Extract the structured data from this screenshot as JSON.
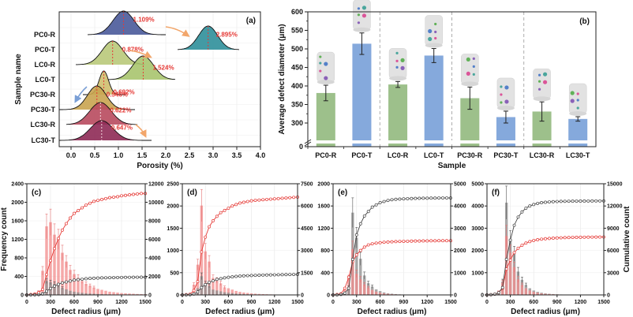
{
  "chart_data": [
    {
      "id": "a",
      "type": "ridgeline",
      "panel_label": "(a)",
      "xlabel": "Porosity (%)",
      "ylabel": "Sample name",
      "xlim": [
        -0.25,
        4.0
      ],
      "xticks": [
        "0.0",
        "0.5",
        "1.0",
        "1.5",
        "2.0",
        "2.5",
        "3.0",
        "3.5",
        "4.0"
      ],
      "xtick_values": [
        0,
        0.5,
        1,
        1.5,
        2,
        2.5,
        3,
        3.5,
        4
      ],
      "grid": true,
      "categories": [
        "PC0-R",
        "PC0-T",
        "LC0-R",
        "LC0-T",
        "PC30-R",
        "PC30-T",
        "LC30-R",
        "LC30-T"
      ],
      "series": [
        {
          "name": "PC0-R",
          "mean": 1.109,
          "label": "1.109%",
          "sd": 0.22,
          "range": [
            0.35,
            2.0
          ],
          "color": "#4a5a9a"
        },
        {
          "name": "PC0-T",
          "mean": 2.895,
          "label": "2.895%",
          "sd": 0.2,
          "range": [
            2.25,
            3.55
          ],
          "color": "#2f8f9a"
        },
        {
          "name": "LC0-R",
          "mean": 0.878,
          "label": "0.878%",
          "sd": 0.22,
          "range": [
            0.1,
            1.55
          ],
          "color": "#b9c97a"
        },
        {
          "name": "LC0-T",
          "mean": 1.524,
          "label": "1.524%",
          "sd": 0.22,
          "range": [
            0.75,
            2.2
          ],
          "color": "#a9c46e"
        },
        {
          "name": "PC30-R",
          "mean": 0.692,
          "label": "0.692%",
          "sd": 0.1,
          "range": [
            0.25,
            1.15
          ],
          "color": "#cfbf6e"
        },
        {
          "name": "PC30-T",
          "mean": 0.546,
          "label": "0.546%",
          "sd": 0.2,
          "range": [
            -0.25,
            1.35
          ],
          "color": "#c9a450"
        },
        {
          "name": "LC30-R",
          "mean": 0.622,
          "label": "0.622%",
          "sd": 0.23,
          "range": [
            -0.1,
            1.4
          ],
          "color": "#b84a5e"
        },
        {
          "name": "LC30-T",
          "mean": 0.647,
          "label": "0.647%",
          "sd": 0.24,
          "range": [
            -0.25,
            1.7
          ],
          "color": "#8e2a55"
        }
      ]
    },
    {
      "id": "b",
      "type": "bar",
      "panel_label": "(b)",
      "xlabel": "Sample",
      "ylabel": "Average defect diameter (μm)",
      "ylim_broken": [
        0,
        250,
        600
      ],
      "yticks": [
        "0",
        "300",
        "350",
        "400",
        "450",
        "500",
        "550",
        "600"
      ],
      "ytick_values": [
        0,
        300,
        350,
        400,
        450,
        500,
        550,
        600
      ],
      "categories": [
        "PC0-R",
        "PC0-T",
        "LC0-R",
        "LC0-T",
        "PC30-R",
        "PC30-T",
        "LC30-R",
        "LC30-T"
      ],
      "values": [
        381,
        514,
        404,
        482,
        367,
        316,
        331,
        311
      ],
      "errors": [
        21,
        29,
        8,
        19,
        30,
        16,
        26,
        6
      ],
      "colors": [
        "#9dc08b",
        "#85a9dc",
        "#9dc08b",
        "#85a9dc",
        "#9dc08b",
        "#85a9dc",
        "#9dc08b",
        "#85a9dc"
      ],
      "group_dividers_after": [
        1,
        3,
        5
      ],
      "insets": "3D defect reconstructions above each bar"
    },
    {
      "id": "c",
      "type": "bar+line",
      "panel_label": "(c)",
      "xlabel": "Defect radius (μm)",
      "ylabel_left": "Frequency count",
      "xlim": [
        0,
        1500
      ],
      "xticks": [
        "0",
        "300",
        "600",
        "900",
        "1200",
        "1500"
      ],
      "ylim_left": [
        0,
        2400
      ],
      "yticks_left": [
        "0",
        "400",
        "800",
        "1200",
        "1600",
        "2000",
        "2400"
      ],
      "ylim_right": [
        0,
        12000
      ],
      "yticks_right": [
        "0",
        "2000",
        "4000",
        "6000",
        "8000",
        "10000",
        "12000"
      ],
      "x": [
        0,
        50,
        100,
        150,
        200,
        250,
        300,
        350,
        400,
        450,
        500,
        550,
        600,
        650,
        700,
        750,
        800,
        850,
        900,
        950,
        1000,
        1050,
        1100,
        1150,
        1200,
        1250,
        1300,
        1350,
        1400,
        1450,
        1500
      ],
      "series": [
        {
          "name": "freq-red",
          "axis": "left",
          "kind": "bar",
          "color": "#f28b8b",
          "values": [
            10,
            15,
            40,
            100,
            520,
            1480,
            1570,
            1300,
            1200,
            910,
            720,
            540,
            450,
            370,
            300,
            240,
            200,
            160,
            130,
            110,
            90,
            70,
            60,
            50,
            40,
            35,
            30,
            25,
            20,
            18,
            15
          ]
        },
        {
          "name": "freq-gray",
          "axis": "left",
          "kind": "bar",
          "color": "#8c8c8c",
          "values": [
            0,
            0,
            5,
            10,
            60,
            300,
            270,
            240,
            200,
            150,
            120,
            90,
            70,
            55,
            45,
            35,
            30,
            25,
            20,
            15,
            12,
            10,
            8,
            6,
            5,
            4,
            3,
            3,
            2,
            2,
            2
          ]
        },
        {
          "name": "cum-red",
          "axis": "right",
          "kind": "line",
          "color": "#e53935",
          "values": [
            0,
            50,
            100,
            250,
            600,
            2200,
            3700,
            5000,
            6100,
            7000,
            7700,
            8300,
            8800,
            9100,
            9400,
            9700,
            9900,
            10100,
            10200,
            10300,
            10400,
            10500,
            10550,
            10600,
            10700,
            10750,
            10800,
            10850,
            10900,
            10950,
            10950
          ]
        },
        {
          "name": "cum-gray",
          "axis": "right",
          "kind": "line",
          "color": "#444444",
          "values": [
            0,
            0,
            10,
            30,
            100,
            400,
            700,
            950,
            1150,
            1300,
            1400,
            1500,
            1600,
            1650,
            1700,
            1750,
            1780,
            1800,
            1820,
            1840,
            1850,
            1860,
            1870,
            1880,
            1890,
            1895,
            1900,
            1905,
            1910,
            1915,
            1920
          ]
        }
      ]
    },
    {
      "id": "d",
      "type": "bar+line",
      "panel_label": "(d)",
      "xlabel": "Defect radius (μm)",
      "xlim": [
        0,
        1500
      ],
      "xticks": [
        "0",
        "300",
        "600",
        "900",
        "1200",
        "1500"
      ],
      "ylim_left": [
        0,
        2500
      ],
      "yticks_left": [
        "0",
        "500",
        "1000",
        "1500",
        "2000",
        "2500"
      ],
      "ylim_right": [
        0,
        7500
      ],
      "yticks_right": [
        "0",
        "1500",
        "3000",
        "4500",
        "6000",
        "7500"
      ],
      "x": [
        0,
        50,
        100,
        150,
        200,
        250,
        300,
        350,
        400,
        450,
        500,
        550,
        600,
        650,
        700,
        750,
        800,
        850,
        900,
        950,
        1000,
        1050,
        1100,
        1150,
        1200,
        1250,
        1300,
        1350,
        1400,
        1450,
        1500
      ],
      "series": [
        {
          "name": "freq-red",
          "axis": "left",
          "kind": "bar",
          "color": "#f28b8b",
          "values": [
            5,
            10,
            30,
            230,
            680,
            2010,
            980,
            750,
            380,
            330,
            260,
            170,
            150,
            120,
            90,
            70,
            55,
            45,
            35,
            28,
            22,
            18,
            15,
            12,
            10,
            8,
            7,
            6,
            5,
            4,
            4
          ]
        },
        {
          "name": "freq-gray",
          "axis": "left",
          "kind": "bar",
          "color": "#8c8c8c",
          "values": [
            0,
            0,
            5,
            40,
            150,
            420,
            260,
            200,
            120,
            100,
            80,
            60,
            50,
            40,
            30,
            25,
            20,
            15,
            12,
            10,
            8,
            6,
            5,
            4,
            3,
            3,
            2,
            2,
            2,
            1,
            1
          ]
        },
        {
          "name": "cum-red",
          "axis": "right",
          "kind": "line",
          "color": "#e53935",
          "values": [
            0,
            20,
            50,
            300,
            900,
            2900,
            3900,
            4600,
            5000,
            5300,
            5550,
            5700,
            5850,
            6000,
            6100,
            6200,
            6250,
            6300,
            6350,
            6380,
            6400,
            6420,
            6440,
            6460,
            6480,
            6500,
            6520,
            6540,
            6560,
            6580,
            6600
          ]
        },
        {
          "name": "cum-gray",
          "axis": "right",
          "kind": "line",
          "color": "#444444",
          "values": [
            0,
            0,
            10,
            60,
            200,
            500,
            700,
            850,
            950,
            1050,
            1100,
            1150,
            1190,
            1220,
            1250,
            1270,
            1290,
            1300,
            1310,
            1320,
            1330,
            1340,
            1345,
            1350,
            1355,
            1360,
            1365,
            1370,
            1375,
            1380,
            1385
          ]
        }
      ]
    },
    {
      "id": "e",
      "type": "bar+line",
      "panel_label": "(e)",
      "xlabel": "Defect radius (μm)",
      "xlim": [
        0,
        1500
      ],
      "xticks": [
        "0",
        "300",
        "600",
        "900",
        "1200",
        "1500"
      ],
      "ylim_left": [
        0,
        2000
      ],
      "yticks_left": [
        "0",
        "400",
        "800",
        "1200",
        "1600",
        "2000"
      ],
      "ylim_right": [
        0,
        5000
      ],
      "yticks_right": [
        "0",
        "1000",
        "2000",
        "3000",
        "4000",
        "5000"
      ],
      "x": [
        0,
        50,
        100,
        150,
        200,
        250,
        300,
        350,
        400,
        450,
        500,
        550,
        600,
        650,
        700,
        750,
        800,
        850,
        900,
        950,
        1000,
        1050,
        1100,
        1150,
        1200,
        1250,
        1300,
        1350,
        1400,
        1450,
        1500
      ],
      "series": [
        {
          "name": "freq-red",
          "axis": "left",
          "kind": "bar",
          "color": "#f28b8b",
          "values": [
            0,
            5,
            20,
            120,
            300,
            820,
            380,
            280,
            190,
            130,
            90,
            60,
            40,
            28,
            20,
            14,
            10,
            8,
            6,
            5,
            4,
            3,
            3,
            2,
            2,
            2,
            1,
            1,
            1,
            1,
            1
          ]
        },
        {
          "name": "freq-gray",
          "axis": "left",
          "kind": "bar",
          "color": "#8c8c8c",
          "values": [
            0,
            0,
            10,
            40,
            140,
            1480,
            1030,
            650,
            350,
            210,
            150,
            100,
            70,
            45,
            30,
            22,
            15,
            10,
            8,
            6,
            5,
            4,
            3,
            3,
            2,
            2,
            2,
            1,
            1,
            1,
            1
          ]
        },
        {
          "name": "cum-red",
          "axis": "right",
          "kind": "line",
          "color": "#e53935",
          "values": [
            0,
            20,
            50,
            300,
            800,
            1500,
            1800,
            2000,
            2150,
            2250,
            2300,
            2330,
            2350,
            2370,
            2380,
            2390,
            2400,
            2405,
            2410,
            2415,
            2420,
            2425,
            2425,
            2430,
            2430,
            2435,
            2435,
            2440,
            2440,
            2440,
            2440
          ]
        },
        {
          "name": "cum-gray",
          "axis": "right",
          "kind": "line",
          "color": "#444444",
          "values": [
            0,
            0,
            20,
            80,
            300,
            1600,
            2700,
            3200,
            3550,
            3750,
            3950,
            4050,
            4150,
            4200,
            4250,
            4280,
            4300,
            4310,
            4320,
            4330,
            4335,
            4340,
            4345,
            4350,
            4350,
            4355,
            4355,
            4360,
            4360,
            4360,
            4360
          ]
        }
      ]
    },
    {
      "id": "f",
      "type": "bar+line",
      "panel_label": "(f)",
      "xlabel": "Defect radius (μm)",
      "ylabel_right": "Cumulative count",
      "xlim": [
        0,
        1500
      ],
      "xticks": [
        "0",
        "300",
        "600",
        "900",
        "1200",
        "1500"
      ],
      "ylim_left": [
        0,
        5000
      ],
      "yticks_left": [
        "0",
        "1000",
        "2000",
        "3000",
        "4000",
        "5000"
      ],
      "ylim_right": [
        0,
        15000
      ],
      "yticks_right": [
        "0",
        "3000",
        "6000",
        "9000",
        "12000",
        "15000"
      ],
      "x": [
        0,
        50,
        100,
        150,
        200,
        250,
        300,
        350,
        400,
        450,
        500,
        550,
        600,
        650,
        700,
        750,
        800,
        850,
        900,
        950,
        1000,
        1050,
        1100,
        1150,
        1200,
        1250,
        1300,
        1350,
        1400,
        1450,
        1500
      ],
      "series": [
        {
          "name": "freq-red",
          "axis": "left",
          "kind": "bar",
          "color": "#f28b8b",
          "values": [
            5,
            20,
            60,
            200,
            550,
            2650,
            1900,
            1250,
            700,
            450,
            300,
            200,
            140,
            100,
            70,
            50,
            40,
            30,
            22,
            18,
            14,
            11,
            9,
            7,
            6,
            5,
            4,
            3,
            3,
            2,
            2
          ]
        },
        {
          "name": "freq-gray",
          "axis": "left",
          "kind": "bar",
          "color": "#8c8c8c",
          "values": [
            0,
            10,
            40,
            150,
            600,
            4150,
            2450,
            1850,
            1050,
            680,
            450,
            300,
            200,
            140,
            100,
            70,
            50,
            38,
            28,
            20,
            15,
            12,
            9,
            7,
            6,
            5,
            4,
            3,
            3,
            2,
            2
          ]
        },
        {
          "name": "cum-red",
          "axis": "right",
          "kind": "line",
          "color": "#e53935",
          "values": [
            0,
            30,
            100,
            300,
            900,
            3500,
            4700,
            5700,
            6300,
            6700,
            7000,
            7200,
            7350,
            7450,
            7520,
            7580,
            7620,
            7660,
            7690,
            7710,
            7730,
            7745,
            7760,
            7770,
            7780,
            7790,
            7795,
            7800,
            7805,
            7810,
            7815
          ]
        },
        {
          "name": "cum-gray",
          "axis": "right",
          "kind": "line",
          "color": "#444444",
          "values": [
            0,
            30,
            100,
            300,
            1000,
            4800,
            7400,
            9400,
            10500,
            11200,
            11700,
            12000,
            12200,
            12350,
            12450,
            12500,
            12550,
            12580,
            12600,
            12620,
            12630,
            12640,
            12650,
            12655,
            12660,
            12665,
            12670,
            12675,
            12680,
            12680,
            12680
          ]
        }
      ]
    }
  ]
}
